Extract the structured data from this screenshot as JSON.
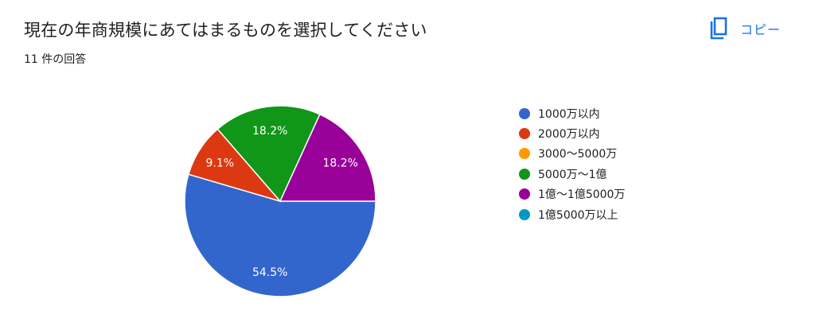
{
  "header": {
    "question_title": "現在の年商規模にあてはまるものを選択してください",
    "response_count": "11 件の回答",
    "copy_label": "コピー",
    "copy_icon": "copy-icon"
  },
  "chart_data": {
    "type": "pie",
    "legend_position": "right",
    "slices": [
      {
        "label": "1000万以内",
        "value": 6,
        "percent": "54.5%",
        "color": "#3366cc"
      },
      {
        "label": "2000万以内",
        "value": 1,
        "percent": "9.1%",
        "color": "#dc3912"
      },
      {
        "label": "3000〜5000万",
        "value": 0,
        "percent": "",
        "color": "#ff9900"
      },
      {
        "label": "5000万〜1億",
        "value": 2,
        "percent": "18.2%",
        "color": "#109618"
      },
      {
        "label": "1億〜1億5000万",
        "value": 2,
        "percent": "18.2%",
        "color": "#990099"
      },
      {
        "label": "1億5000万以上",
        "value": 0,
        "percent": "",
        "color": "#0099c6"
      }
    ]
  }
}
